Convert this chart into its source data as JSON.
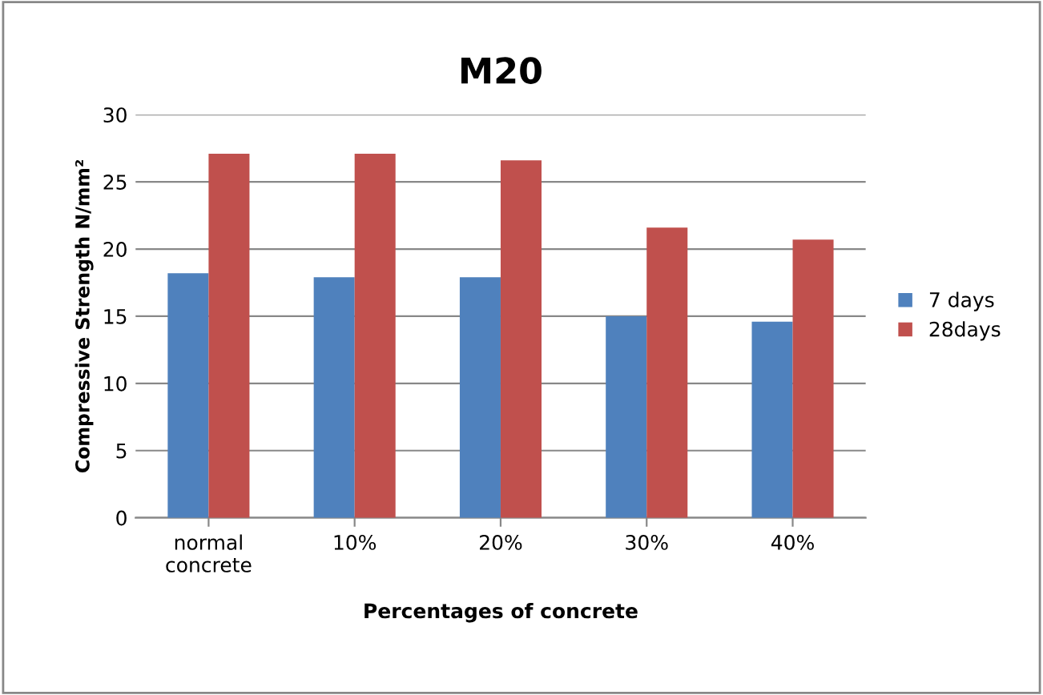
{
  "chart_data": {
    "type": "bar",
    "title": "M20",
    "xlabel": "Percentages of concrete",
    "ylabel": "Compressive Strength N/mm²",
    "categories": [
      "normal\nconcrete",
      "10%",
      "20%",
      "30%",
      "40%"
    ],
    "series": [
      {
        "name": "7 days",
        "color": "#4f81bd",
        "values": [
          18.2,
          17.9,
          17.9,
          15.0,
          14.6
        ]
      },
      {
        "name": "28days",
        "color": "#c0504d",
        "values": [
          27.1,
          27.1,
          26.6,
          21.6,
          20.7
        ]
      }
    ],
    "ylim": [
      0,
      30
    ],
    "yticks": [
      0,
      5,
      10,
      15,
      20,
      25,
      30
    ],
    "grid": "y",
    "legend": "right"
  }
}
